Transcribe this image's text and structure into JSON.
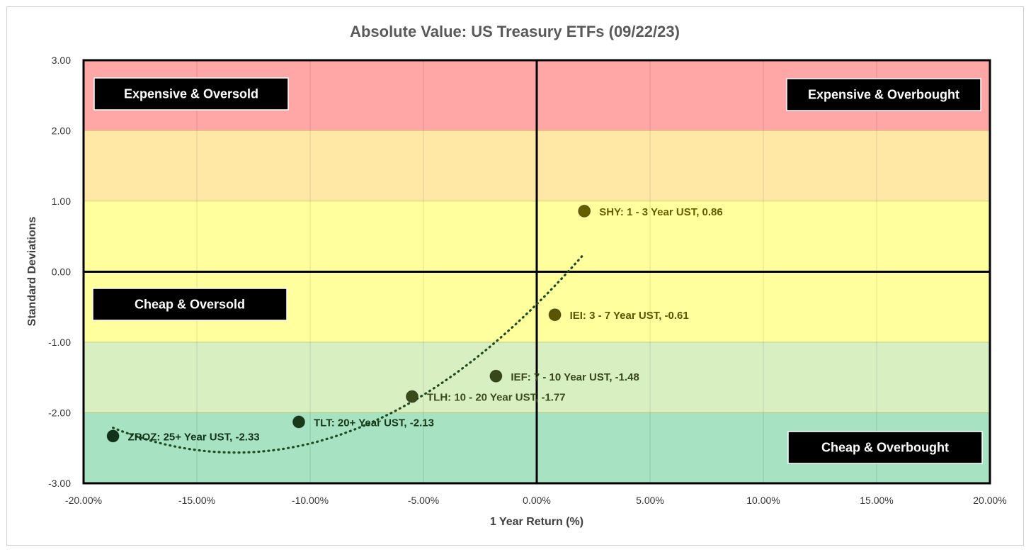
{
  "chart_data": {
    "type": "scatter",
    "title": "Absolute Value: US Treasury ETFs (09/22/23)",
    "xlabel": "1 Year Return (%)",
    "ylabel": "Standard Deviations",
    "xlim": [
      -20,
      20
    ],
    "ylim": [
      -3,
      3
    ],
    "x_ticks": [
      -20,
      -15,
      -10,
      -5,
      0,
      5,
      10,
      15,
      20
    ],
    "x_tick_labels": [
      "-20.00%",
      "-15.00%",
      "-10.00%",
      "-5.00%",
      "0.00%",
      "5.00%",
      "10.00%",
      "15.00%",
      "20.00%"
    ],
    "y_ticks": [
      3,
      2,
      1,
      0,
      -1,
      -2,
      -3
    ],
    "y_tick_labels": [
      "3.00",
      "2.00",
      "1.00",
      "0.00",
      "-1.00",
      "-2.00",
      "-3.00"
    ],
    "grid": true,
    "bands": [
      {
        "from": 2,
        "to": 3,
        "color": "#ffa7a7"
      },
      {
        "from": 1,
        "to": 2,
        "color": "#ffe8a6"
      },
      {
        "from": -1,
        "to": 1,
        "color": "#ffff9e"
      },
      {
        "from": -2,
        "to": -1,
        "color": "#d8efc2"
      },
      {
        "from": -3,
        "to": -2,
        "color": "#a7e3c2"
      }
    ],
    "points": [
      {
        "label": "SHY: 1 - 3 Year UST, 0.86",
        "x": 2.1,
        "y": 0.86,
        "color": "#665f00"
      },
      {
        "label": "IEI: 3 - 7 Year UST, -0.61",
        "x": 0.8,
        "y": -0.61,
        "color": "#5b5400"
      },
      {
        "label": "IEF: 7 - 10 Year UST, -1.48",
        "x": -1.8,
        "y": -1.48,
        "color": "#37471a"
      },
      {
        "label": "TLH: 10 - 20 Year UST, -1.77",
        "x": -5.5,
        "y": -1.77,
        "color": "#3b4a1b"
      },
      {
        "label": "TLT: 20+ Year UST, -2.13",
        "x": -10.5,
        "y": -2.13,
        "color": "#193a1a"
      },
      {
        "label": "ZROZ: 25+ Year UST, -2.33",
        "x": -18.7,
        "y": -2.33,
        "color": "#12331b"
      }
    ],
    "trendline": {
      "type": "polynomial",
      "style": "dotted",
      "color": "#1f4a1f"
    },
    "quadrant_labels": [
      {
        "text": "Expensive & Oversold",
        "position": "top-left"
      },
      {
        "text": "Expensive & Overbought",
        "position": "top-right"
      },
      {
        "text": "Cheap & Oversold",
        "position": "middle-left"
      },
      {
        "text": "Cheap & Overbought",
        "position": "bottom-right"
      }
    ]
  }
}
